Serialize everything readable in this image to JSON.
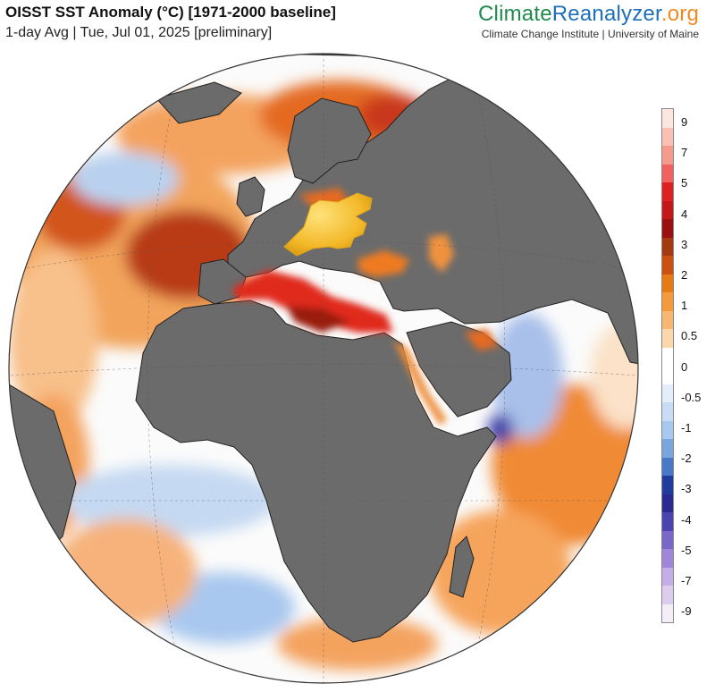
{
  "header": {
    "title": "OISST SST Anomaly (°C) [1971-2000 baseline]",
    "subtitle": "1-day Avg | Tue, Jul 01, 2025 [preliminary]"
  },
  "brand": {
    "part1": "Climate",
    "part2": "Reanalyzer",
    "part3": ".org",
    "org": "Climate Change Institute | University of Maine"
  },
  "map": {
    "projection": "orthographic globe",
    "view_center": "Africa / Mediterranean",
    "land_color": "#6b6b6b",
    "annotation_icon": "pointing-hand-icon"
  },
  "legend": {
    "labels": [
      "9",
      "7",
      "5",
      "4",
      "3",
      "2",
      "1",
      "0.5",
      "0",
      "-0.5",
      "-1",
      "-2",
      "-3",
      "-4",
      "-5",
      "-7",
      "-9"
    ],
    "colors": [
      "#fde6e0",
      "#fbc0b3",
      "#f79a8e",
      "#f36060",
      "#e02020",
      "#c41818",
      "#9a1010",
      "#a33a10",
      "#cc5010",
      "#e87a14",
      "#f59a3a",
      "#f8b670",
      "#fbd7ab",
      "#ffffff",
      "#ffffff",
      "#e4eefb",
      "#c9dcf5",
      "#a9c8ef",
      "#7aa6e0",
      "#4a78c8",
      "#203c9c",
      "#2a2a90",
      "#4b44b0",
      "#7a68c8",
      "#9f86d8",
      "#c3aee6",
      "#dccdef",
      "#f4eef8"
    ]
  }
}
